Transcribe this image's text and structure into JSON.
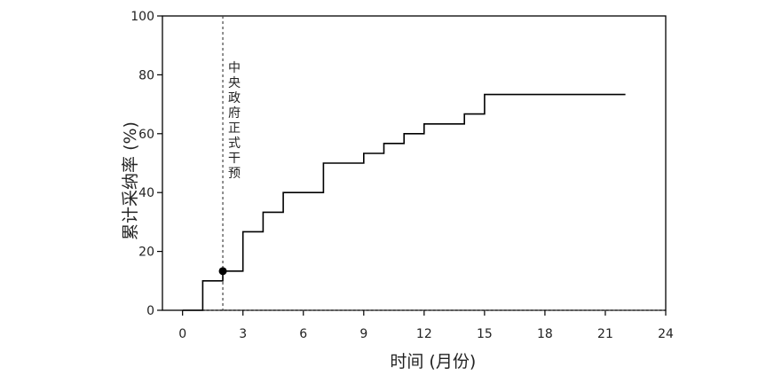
{
  "chart_data": {
    "type": "line",
    "subtype": "step",
    "title": "",
    "xlabel": "时间 (月份)",
    "ylabel": "累计采纳率 (%)",
    "xlim": [
      -1,
      24
    ],
    "ylim": [
      0,
      100
    ],
    "x_ticks": [
      0,
      3,
      6,
      9,
      12,
      15,
      18,
      21,
      24
    ],
    "y_ticks": [
      0,
      20,
      40,
      60,
      80,
      100
    ],
    "grid": false,
    "legend": "none",
    "series": [
      {
        "points": [
          [
            0,
            0
          ],
          [
            1,
            0
          ],
          [
            1,
            10
          ],
          [
            2,
            10
          ],
          [
            2,
            13.3
          ],
          [
            3,
            13.3
          ],
          [
            3,
            26.7
          ],
          [
            4,
            26.7
          ],
          [
            4,
            33.3
          ],
          [
            5,
            33.3
          ],
          [
            5,
            40
          ],
          [
            7,
            40
          ],
          [
            7,
            50
          ],
          [
            9,
            50
          ],
          [
            9,
            53.3
          ],
          [
            10,
            53.3
          ],
          [
            10,
            56.7
          ],
          [
            11,
            56.7
          ],
          [
            11,
            60
          ],
          [
            12,
            60
          ],
          [
            12,
            63.3
          ],
          [
            14,
            63.3
          ],
          [
            14,
            66.7
          ],
          [
            15,
            66.7
          ],
          [
            15,
            73.3
          ],
          [
            22,
            73.3
          ]
        ],
        "color": "#000000"
      }
    ],
    "intervention": {
      "x": 2,
      "label": "中央政府正式干预"
    },
    "marker": {
      "x": 2,
      "y": 13.3
    },
    "colors": {
      "axis": "#000000",
      "line": "#000000",
      "reference": "#444444"
    }
  }
}
